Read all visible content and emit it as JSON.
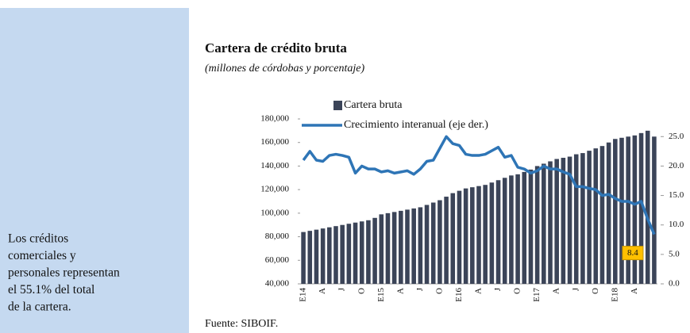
{
  "sidebar_lines": [
    "Los créditos",
    "comerciales y",
    "personales representan",
    "el 55.1% del total",
    "de la cartera."
  ],
  "source": "Fuente: SIBOIF.",
  "chart_data": {
    "type": "bar_line",
    "title": "Cartera de crédito bruta",
    "subtitle": "(millones de córdobas y porcentaje)",
    "categories": [
      "E14",
      null,
      null,
      "A",
      null,
      null,
      "J",
      null,
      null,
      "O",
      null,
      null,
      "E15",
      null,
      null,
      "A",
      null,
      null,
      "J",
      null,
      null,
      "O",
      null,
      null,
      "E16",
      null,
      null,
      "A",
      null,
      null,
      "J",
      null,
      null,
      "O",
      null,
      null,
      "E17",
      null,
      null,
      "A",
      null,
      null,
      "J",
      null,
      null,
      "O",
      null,
      null,
      "E18",
      null,
      null,
      "A",
      null,
      null,
      null
    ],
    "series": [
      {
        "name": "Cartera bruta",
        "type": "bar",
        "color": "#3b4458",
        "values": [
          84000,
          85000,
          86000,
          87000,
          88000,
          89000,
          90000,
          91000,
          92000,
          93000,
          94000,
          96000,
          99000,
          100000,
          101000,
          102000,
          103000,
          104000,
          105000,
          107000,
          109000,
          111000,
          114000,
          117000,
          119000,
          121000,
          122000,
          123000,
          124000,
          126000,
          128000,
          130000,
          132000,
          133000,
          135000,
          137000,
          140000,
          142000,
          144000,
          146000,
          147000,
          148000,
          150000,
          151000,
          153000,
          155000,
          157000,
          160000,
          163000,
          164000,
          165000,
          166000,
          168000,
          170000,
          165000
        ]
      },
      {
        "name": "Crecimiento interanual (eje der.)",
        "type": "line",
        "axis": "y2",
        "color": "#2e75b6",
        "values": [
          21.0,
          22.5,
          21.0,
          20.8,
          21.8,
          22.0,
          21.8,
          21.5,
          18.8,
          20.0,
          19.5,
          19.5,
          19.0,
          19.2,
          18.8,
          19.0,
          19.2,
          18.6,
          19.5,
          20.8,
          21.0,
          23.0,
          25.0,
          23.8,
          23.5,
          22.0,
          21.8,
          21.8,
          22.0,
          22.6,
          23.2,
          21.5,
          21.8,
          19.8,
          19.5,
          18.8,
          19.2,
          20.0,
          19.5,
          19.5,
          19.0,
          18.6,
          16.5,
          16.5,
          16.2,
          16.0,
          15.0,
          15.2,
          14.5,
          14.0,
          14.0,
          13.5,
          14.0,
          11.0,
          8.4
        ]
      }
    ],
    "ylim": [
      40000,
      180000
    ],
    "yticks": [
      {
        "value": 40000,
        "label": "40,000"
      },
      {
        "value": 60000,
        "label": "60,000"
      },
      {
        "value": 80000,
        "label": "80,000"
      },
      {
        "value": 100000,
        "label": "100,000"
      },
      {
        "value": 120000,
        "label": "120,000"
      },
      {
        "value": 140000,
        "label": "140,000"
      },
      {
        "value": 160000,
        "label": "160,000"
      },
      {
        "value": 180000,
        "label": "180,000"
      }
    ],
    "y2lim": [
      0,
      28
    ],
    "y2ticks": [
      {
        "value": 0,
        "label": "0.0"
      },
      {
        "value": 5,
        "label": "5.0"
      },
      {
        "value": 10,
        "label": "10.0"
      },
      {
        "value": 15,
        "label": "15.0"
      },
      {
        "value": 20,
        "label": "20.0"
      },
      {
        "value": 25,
        "label": "25.0"
      }
    ],
    "legend": "top",
    "grid": false
  }
}
